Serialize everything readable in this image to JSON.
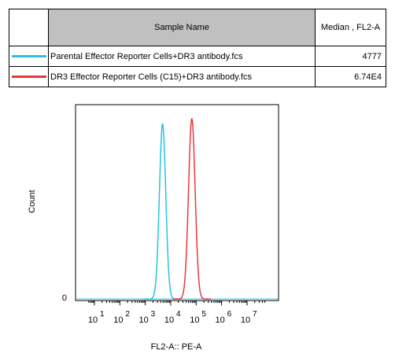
{
  "legend_table": {
    "header_sample_name": "Sample Name",
    "header_median": "Median , FL2-A",
    "rows": [
      {
        "name": "Parental Effector Reporter Cells+DR3 antibody.fcs",
        "median": "4777",
        "color": "#29c2e6"
      },
      {
        "name": "DR3 Effector Reporter Cells (C15)+DR3 antibody.fcs",
        "median": "6.74E4",
        "color": "#e8383c"
      }
    ]
  },
  "chart_data": {
    "type": "line",
    "title": "",
    "xlabel": "FL2-A:: PE-A",
    "ylabel": "Count",
    "x_scale": "log",
    "xlim": [
      10,
      10000000
    ],
    "y_tick_labels": [
      "0"
    ],
    "x_tick_labels": [
      "10^1",
      "10^2",
      "10^3",
      "10^4",
      "10^5",
      "10^6",
      "10^7"
    ],
    "x_tick_bases": [
      "10",
      "10",
      "10",
      "10",
      "10",
      "10",
      "10"
    ],
    "x_tick_exponents": [
      "1",
      "2",
      "3",
      "4",
      "5",
      "6",
      "7"
    ],
    "series": [
      {
        "name": "Parental Effector Reporter Cells+DR3 antibody.fcs",
        "color": "#29c2e6",
        "peak_x": 4777,
        "peak_y": 1.0
      },
      {
        "name": "DR3 Effector Reporter Cells (C15)+DR3 antibody.fcs",
        "color": "#e8383c",
        "peak_x": 67400,
        "peak_y": 1.03
      }
    ]
  }
}
